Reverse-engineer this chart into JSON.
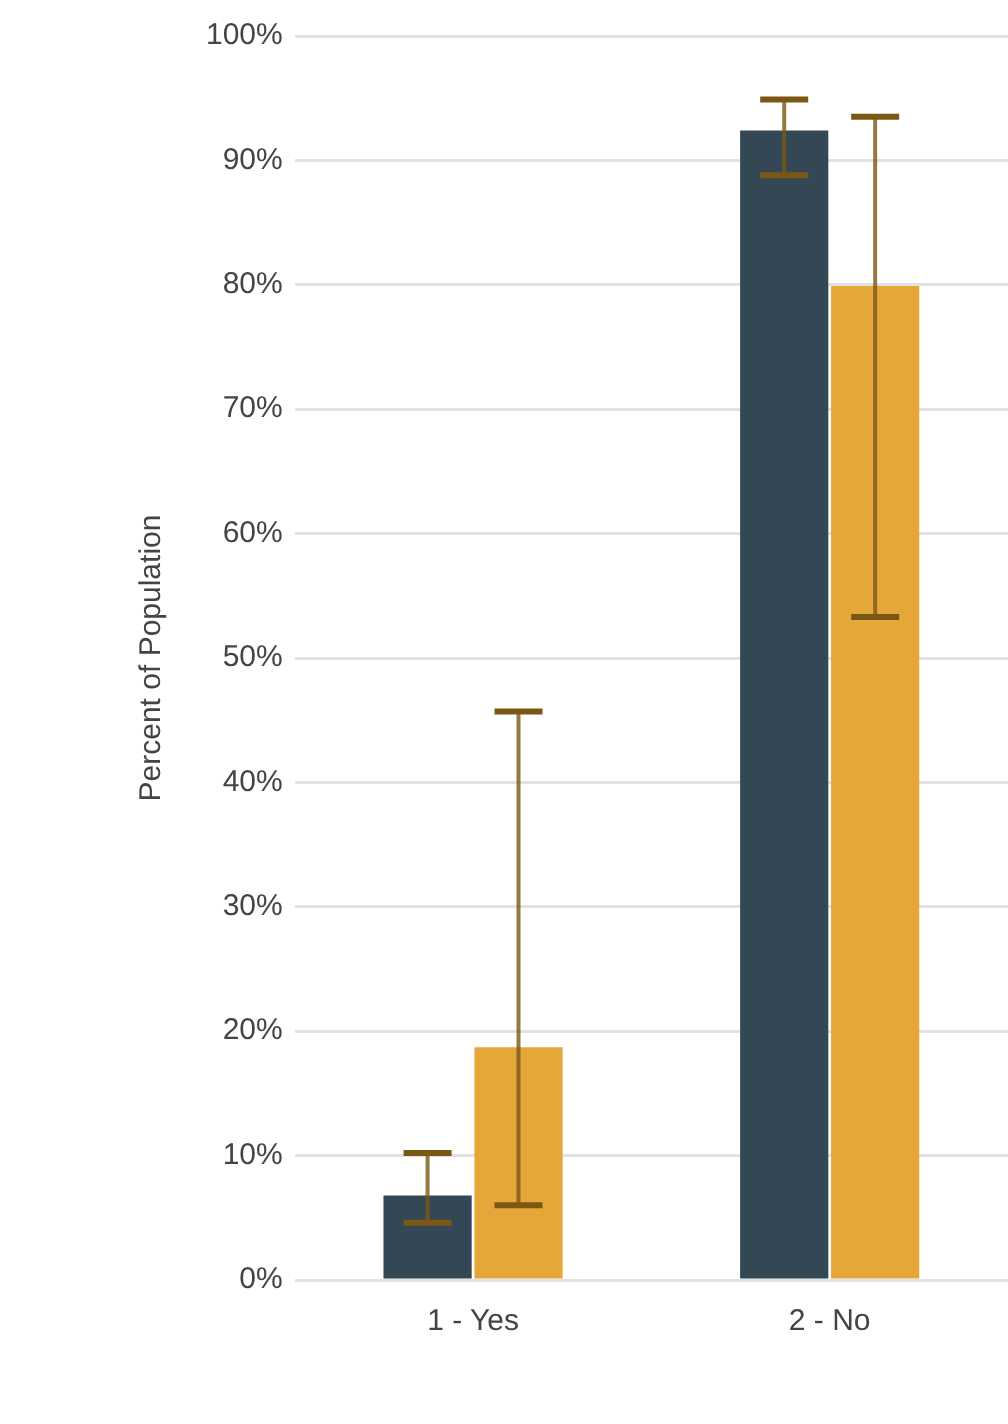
{
  "chart_data": {
    "type": "bar",
    "ylabel": "Percent of Population",
    "categories": [
      "1 - Yes",
      "2 - No"
    ],
    "series": [
      {
        "color": "#334854",
        "values": [
          6.8,
          92.4
        ],
        "errors": [
          [
            4.6,
            10.2
          ],
          [
            88.8,
            94.9
          ]
        ]
      },
      {
        "color": "#e5a73a",
        "values": [
          18.7,
          79.9
        ],
        "errors": [
          [
            6.0,
            45.7
          ],
          [
            53.3,
            93.5
          ]
        ]
      }
    ],
    "ylim": [
      0,
      100
    ],
    "yticks": [
      {
        "value": 0,
        "label": "0%"
      },
      {
        "value": 10,
        "label": "10%"
      },
      {
        "value": 20,
        "label": "20%"
      },
      {
        "value": 30,
        "label": "30%"
      },
      {
        "value": 40,
        "label": "40%"
      },
      {
        "value": 50,
        "label": "50%"
      },
      {
        "value": 60,
        "label": "60%"
      },
      {
        "value": 70,
        "label": "70%"
      },
      {
        "value": 80,
        "label": "80%"
      },
      {
        "value": 90,
        "label": "90%"
      },
      {
        "value": 100,
        "label": "100%"
      }
    ],
    "grid": "y",
    "legend": false
  }
}
